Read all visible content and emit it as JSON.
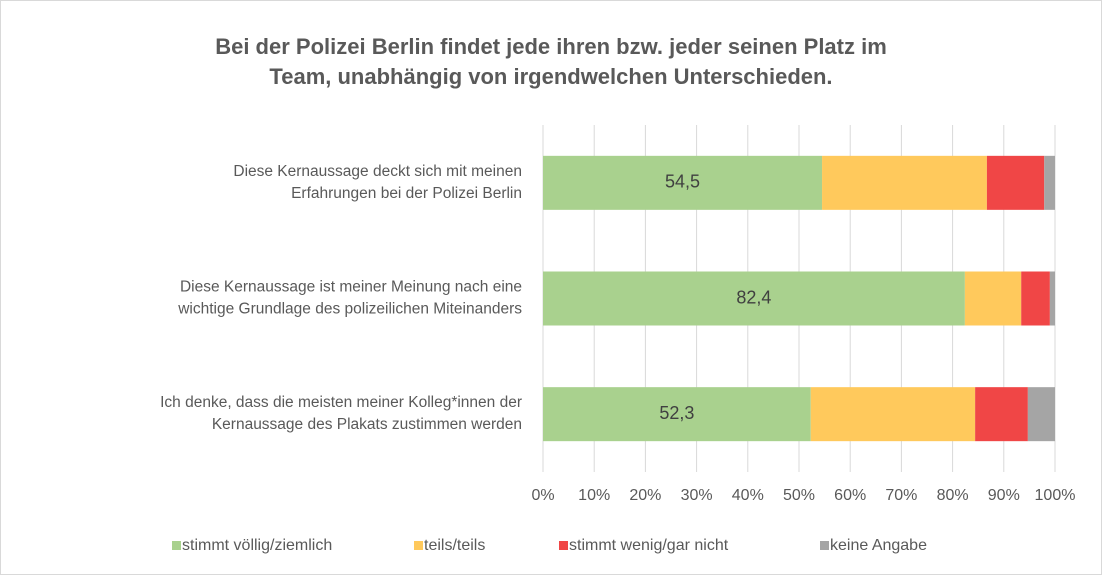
{
  "chart_data": {
    "type": "stacked_barh",
    "title": "Bei der Polizei Berlin findet jede ihren bzw. jeder seinen Platz im\nTeam, unabhängig von irgendwelchen Unterschieden.",
    "categories": [
      "Diese Kernaussage deckt sich mit meinen\nErfahrungen bei der Polizei Berlin",
      "Diese Kernaussage ist meiner Meinung nach eine\nwichtige Grundlage des polizeilichen Miteinanders",
      "Ich denke, dass die meisten meiner Kolleg*innen der\nKernaussage des Plakats zustimmen werden"
    ],
    "series": [
      {
        "name": "stimmt völlig/ziemlich",
        "color": "#a9d18e",
        "values": [
          54.5,
          82.4,
          52.3
        ],
        "value_labels": [
          "54,5",
          "82,4",
          "52,3"
        ]
      },
      {
        "name": "teils/teils",
        "color": "#ffc95c",
        "values": [
          32.2,
          11.0,
          32.1
        ]
      },
      {
        "name": "stimmt wenig/gar nicht",
        "color": "#f04646",
        "values": [
          11.2,
          5.6,
          10.3
        ]
      },
      {
        "name": "keine Angabe",
        "color": "#a5a5a5",
        "values": [
          2.1,
          1.0,
          5.3
        ]
      }
    ],
    "xlim": [
      0,
      100
    ],
    "xticks": [
      {
        "value": 0,
        "label": "0%"
      },
      {
        "value": 10,
        "label": "10%"
      },
      {
        "value": 20,
        "label": "20%"
      },
      {
        "value": 30,
        "label": "30%"
      },
      {
        "value": 40,
        "label": "40%"
      },
      {
        "value": 50,
        "label": "50%"
      },
      {
        "value": 60,
        "label": "60%"
      },
      {
        "value": 70,
        "label": "70%"
      },
      {
        "value": 80,
        "label": "80%"
      },
      {
        "value": 90,
        "label": "90%"
      },
      {
        "value": 100,
        "label": "100%"
      }
    ],
    "grid": true,
    "legend": "bottom"
  }
}
